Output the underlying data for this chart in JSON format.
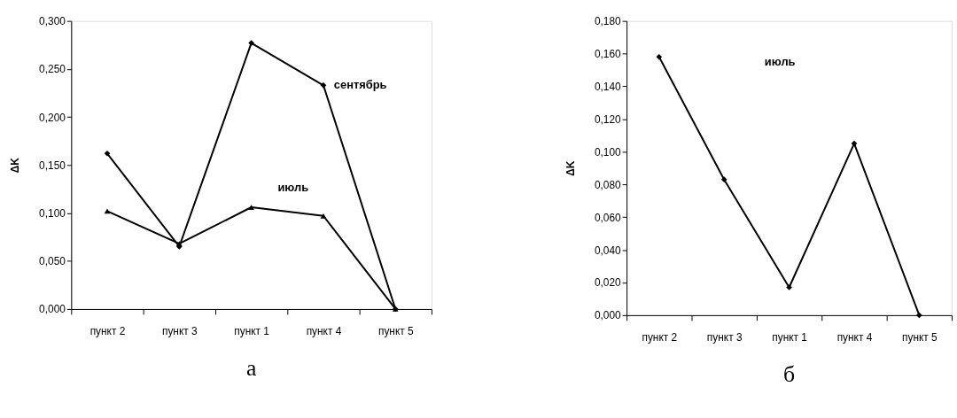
{
  "chart_data": [
    {
      "type": "line",
      "title": "а",
      "ylabel": "ΔK",
      "categories": [
        "пункт 2",
        "пункт 3",
        "пункт 1",
        "пункт 4",
        "пункт 5"
      ],
      "series": [
        {
          "name": "сентябрь",
          "color": "#000000",
          "marker": "diamond",
          "values": [
            0.162,
            0.065,
            0.277,
            0.233,
            0.0
          ]
        },
        {
          "name": "июль",
          "color": "#000000",
          "marker": "triangle",
          "values": [
            0.102,
            0.068,
            0.106,
            0.097,
            0.0
          ]
        }
      ],
      "ylim": [
        0,
        0.3
      ],
      "yticks": [
        {
          "value": 0,
          "label": "0,000"
        },
        {
          "value": 0.05,
          "label": "0,050"
        },
        {
          "value": 0.1,
          "label": "0,100"
        },
        {
          "value": 0.15,
          "label": "0,150"
        },
        {
          "value": 0.2,
          "label": "0,200"
        },
        {
          "value": 0.25,
          "label": "0,250"
        },
        {
          "value": 0.3,
          "label": "0,300"
        }
      ],
      "grid": false,
      "legend": false,
      "line_style": "solid"
    },
    {
      "type": "line",
      "title": "б",
      "ylabel": "ΔK",
      "categories": [
        "пункт 2",
        "пункт 3",
        "пункт 1",
        "пункт 4",
        "пункт 5"
      ],
      "series": [
        {
          "name": "июль",
          "color": "#000000",
          "marker": "diamond",
          "values": [
            0.158,
            0.083,
            0.017,
            0.105,
            0.0
          ]
        }
      ],
      "ylim": [
        0,
        0.18
      ],
      "yticks": [
        {
          "value": 0,
          "label": "0,000"
        },
        {
          "value": 0.02,
          "label": "0,020"
        },
        {
          "value": 0.04,
          "label": "0,040"
        },
        {
          "value": 0.06,
          "label": "0,060"
        },
        {
          "value": 0.08,
          "label": "0,080"
        },
        {
          "value": 0.1,
          "label": "0,100"
        },
        {
          "value": 0.12,
          "label": "0,120"
        },
        {
          "value": 0.14,
          "label": "0,140"
        },
        {
          "value": 0.16,
          "label": "0,160"
        },
        {
          "value": 0.18,
          "label": "0,180"
        }
      ],
      "grid": false,
      "legend": false,
      "line_style": "solid"
    }
  ]
}
